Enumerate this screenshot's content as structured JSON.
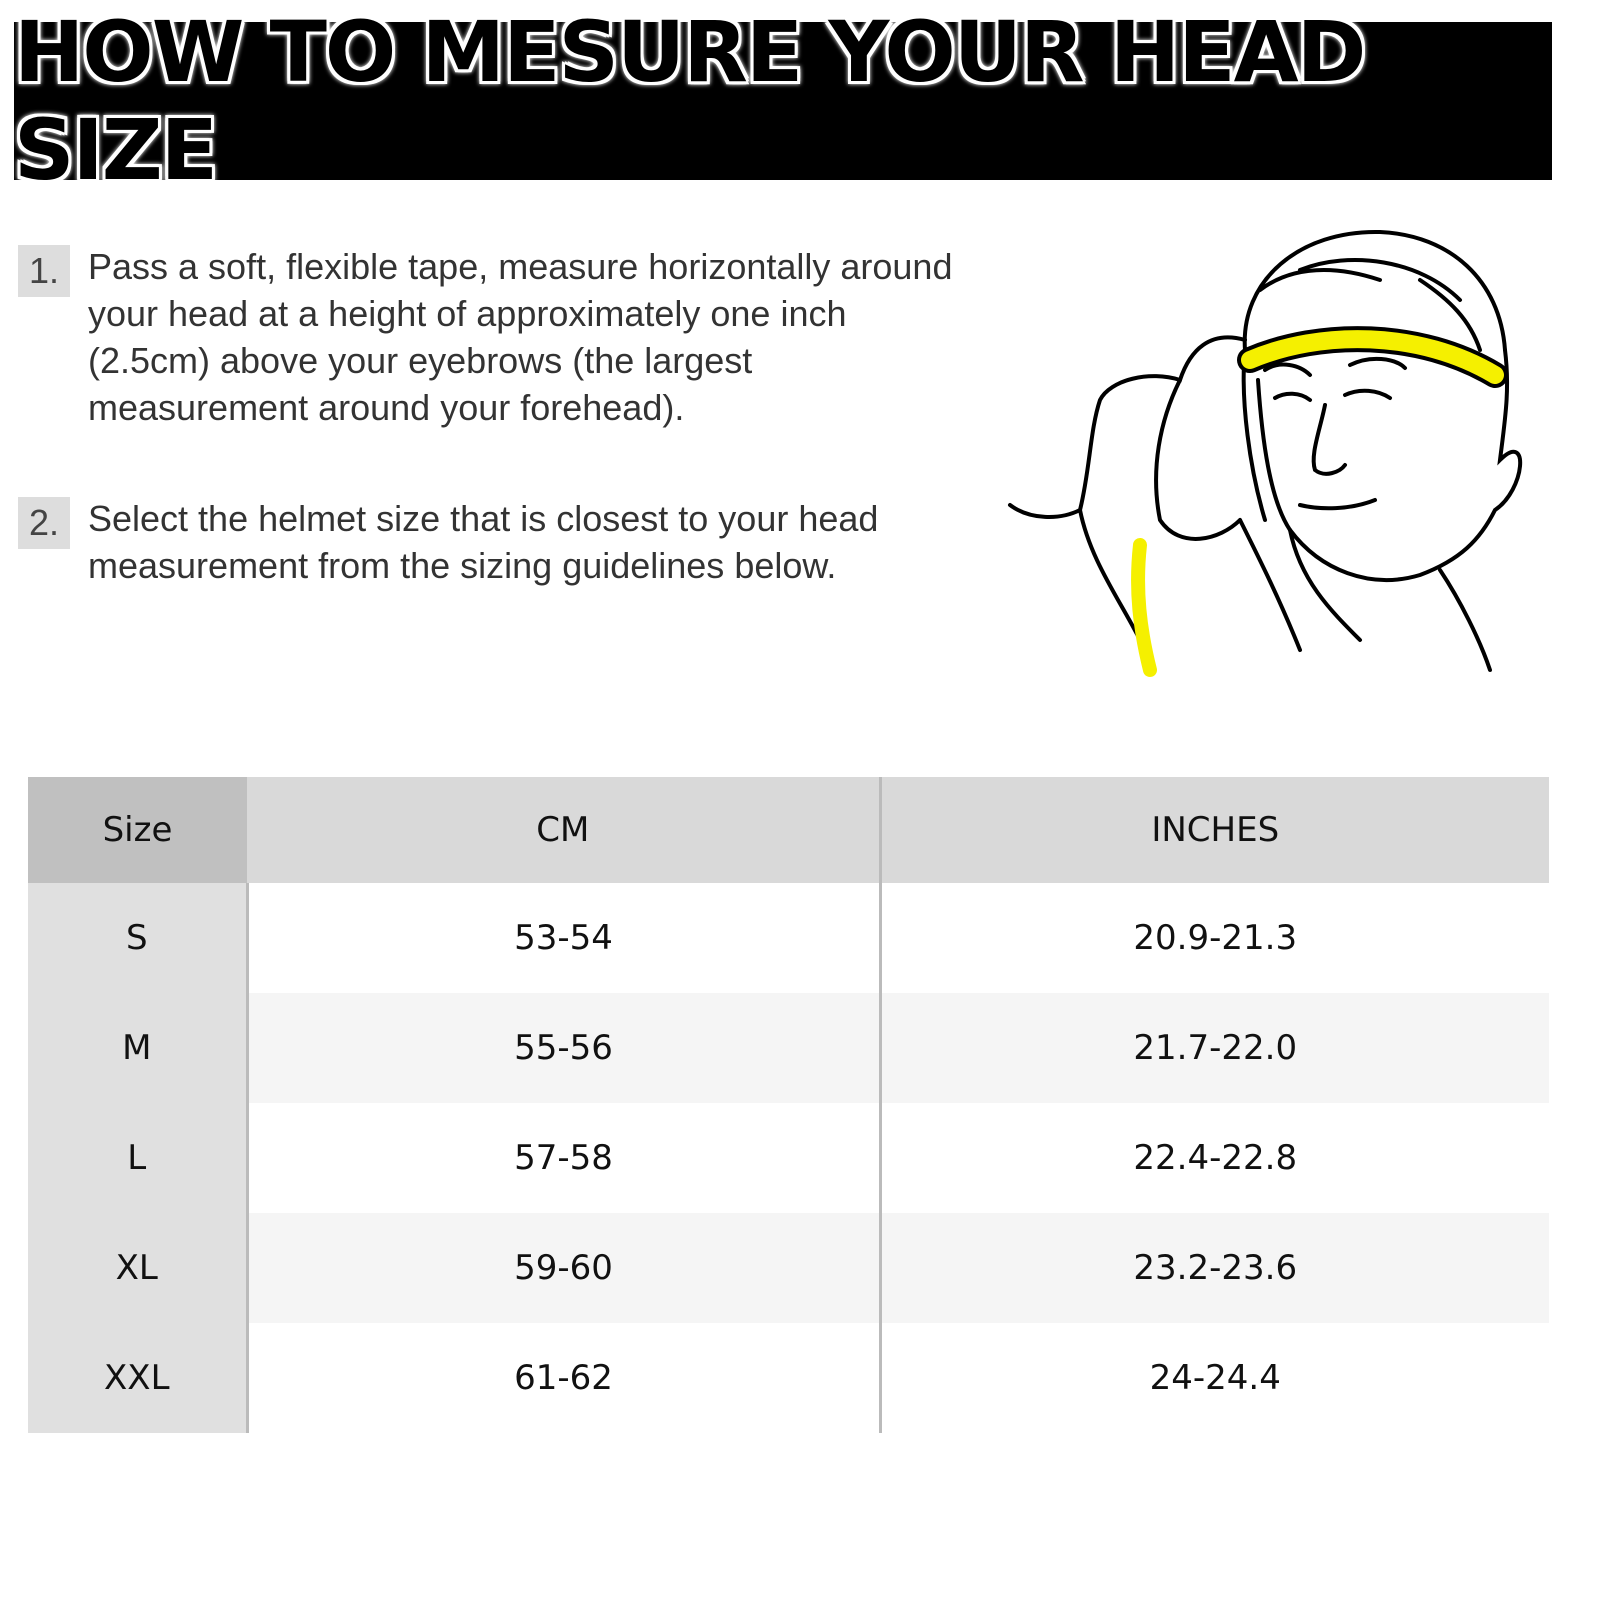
{
  "title": "HOW TO MESURE YOUR HEAD SIZE",
  "steps": [
    {
      "number": "1.",
      "text": "Pass a soft, flexible tape, measure horizontally around your head at a height of approximately one inch (2.5cm) above your eyebrows (the largest measurement around your forehead)."
    },
    {
      "number": "2.",
      "text": "Select the helmet size that is closest to your head measurement from the sizing guidelines below."
    }
  ],
  "illustration": {
    "icon": "man-measuring-head-icon",
    "tape_color": "#f5f000"
  },
  "table": {
    "headers": [
      "Size",
      "CM",
      "INCHES"
    ],
    "rows": [
      [
        "S",
        "53-54",
        "20.9-21.3"
      ],
      [
        "M",
        "55-56",
        "21.7-22.0"
      ],
      [
        "L",
        "57-58",
        "22.4-22.8"
      ],
      [
        "XL",
        "59-60",
        "23.2-23.6"
      ],
      [
        "XXL",
        "61-62",
        "24-24.4"
      ]
    ]
  },
  "colors": {
    "banner": "#000000",
    "header": "#d9d9d9",
    "size_header": "#c0c0c0",
    "size_column": "#e0e0e0"
  }
}
